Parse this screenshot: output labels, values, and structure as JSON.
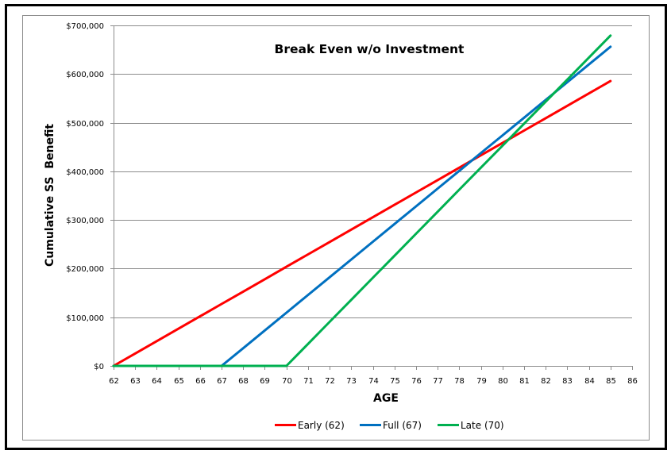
{
  "chart_data": {
    "type": "line",
    "title": "Break Even w/o Investment",
    "xlabel": "AGE",
    "ylabel": "Cumulative SS  Benefit",
    "xlim": [
      62,
      86
    ],
    "ylim": [
      0,
      700000
    ],
    "x_ticks": [
      62,
      63,
      64,
      65,
      66,
      67,
      68,
      69,
      70,
      71,
      72,
      73,
      74,
      75,
      76,
      77,
      78,
      79,
      80,
      81,
      82,
      83,
      84,
      85,
      86
    ],
    "y_ticks": [
      0,
      100000,
      200000,
      300000,
      400000,
      500000,
      600000,
      700000
    ],
    "y_tick_labels": [
      "$0",
      "$100,000",
      "$200,000",
      "$300,000",
      "$400,000",
      "$500,000",
      "$600,000",
      "$700,000"
    ],
    "grid": {
      "horizontal": true,
      "vertical": false
    },
    "legend_position": "bottom",
    "x": [
      62,
      63,
      64,
      65,
      66,
      67,
      68,
      69,
      70,
      71,
      72,
      73,
      74,
      75,
      76,
      77,
      78,
      79,
      80,
      81,
      82,
      83,
      84,
      85
    ],
    "series": [
      {
        "name": "Early (62)",
        "color": "#ff0000",
        "values": [
          0,
          25465,
          50930,
          76395,
          101860,
          127325,
          152790,
          178255,
          203720,
          229185,
          254650,
          280115,
          305580,
          331045,
          356510,
          381975,
          407440,
          432905,
          458370,
          483835,
          509300,
          534765,
          560230,
          585695
        ]
      },
      {
        "name": "Full (67)",
        "color": "#0070c0",
        "values": [
          0,
          0,
          0,
          0,
          0,
          0,
          36450,
          72900,
          109350,
          145800,
          182250,
          218700,
          255150,
          291600,
          328050,
          364500,
          400950,
          437400,
          473850,
          510300,
          546750,
          583200,
          619650,
          656100
        ]
      },
      {
        "name": "Late (70)",
        "color": "#00b050",
        "values": [
          0,
          0,
          0,
          0,
          0,
          0,
          0,
          0,
          0,
          45270,
          90540,
          135810,
          181080,
          226350,
          271620,
          316890,
          362160,
          407430,
          452700,
          497970,
          543240,
          588510,
          633780,
          679050
        ]
      }
    ]
  },
  "legend": {
    "items": [
      {
        "label": "Early (62)",
        "color": "#ff0000"
      },
      {
        "label": "Full (67)",
        "color": "#0070c0"
      },
      {
        "label": "Late (70)",
        "color": "#00b050"
      }
    ]
  },
  "colors": {
    "gridline": "#8c8c8c",
    "axis": "#8c8c8c",
    "frame": "#000000"
  }
}
